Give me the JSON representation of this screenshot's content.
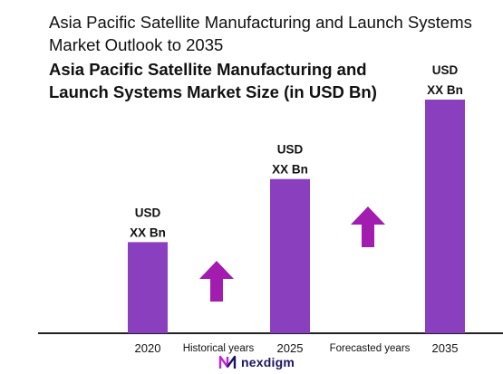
{
  "title": "Asia Pacific Satellite Manufacturing and Launch Systems Market Outlook to 2035",
  "subtitle": "Asia Pacific Satellite Manufacturing and Launch Systems Market Size (in USD Bn)",
  "brand": {
    "name": "nexdigm",
    "logo_icon": "nexdigm-logo-icon"
  },
  "chart_data": {
    "type": "bar",
    "categories": [
      "2020",
      "2025",
      "2035"
    ],
    "values": [
      0.39,
      0.66,
      1.0
    ],
    "value_note": "relative bar heights (no scale printed)",
    "data_labels": [
      [
        "USD",
        "XX Bn"
      ],
      [
        "USD",
        "XX Bn"
      ],
      [
        "USD",
        "XX Bn"
      ]
    ],
    "axis_labels_between": [
      "Historical years",
      "Forecasted years"
    ],
    "bar_color": "#8a3fbe",
    "arrow_color": "#a21caf",
    "grid": false,
    "legend": "none"
  }
}
